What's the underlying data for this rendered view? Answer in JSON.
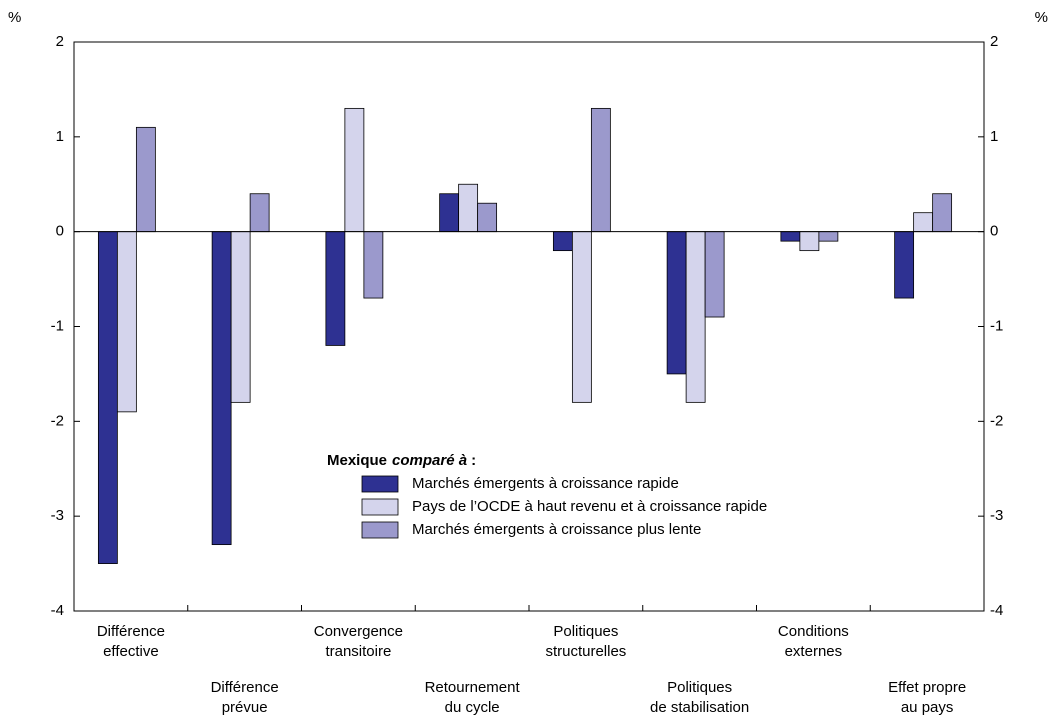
{
  "chart_data": {
    "type": "bar",
    "y_unit": "%",
    "y2_unit": "%",
    "categories": [
      [
        "Différence",
        "effective"
      ],
      [
        "Différence",
        "prévue"
      ],
      [
        "Convergence",
        "transitoire"
      ],
      [
        "Retournement",
        "du cycle"
      ],
      [
        "Politiques",
        "structurelles"
      ],
      [
        "Politiques",
        "de stabilisation"
      ],
      [
        "Conditions",
        "externes"
      ],
      [
        "Effet propre",
        "au pays"
      ]
    ],
    "legend_title": {
      "bold": "Mexique",
      "italic": "comparé à",
      "suffix": ":"
    },
    "series": [
      {
        "name": "Marchés émergents à croissance rapide",
        "color": "#2e3192",
        "values": [
          -3.5,
          -3.3,
          -1.2,
          0.4,
          -0.2,
          -1.5,
          -0.1,
          -0.7
        ]
      },
      {
        "name": "Pays de l’OCDE à haut revenu et à croissance rapide",
        "color": "#d4d4ec",
        "values": [
          -1.9,
          -1.8,
          1.3,
          0.5,
          -1.8,
          -1.8,
          -0.2,
          0.2
        ]
      },
      {
        "name": "Marchés émergents à croissance plus lente",
        "color": "#9b99cc",
        "values": [
          1.1,
          0.4,
          -0.7,
          0.3,
          1.3,
          -0.9,
          -0.1,
          0.4
        ]
      }
    ],
    "ylim": [
      -4,
      2
    ],
    "yticks": [
      -4,
      -3,
      -2,
      -1,
      0,
      1,
      2
    ],
    "y2lim": [
      -4,
      2
    ],
    "y2ticks": [
      -4,
      -3,
      -2,
      -1,
      0,
      1,
      2
    ]
  }
}
